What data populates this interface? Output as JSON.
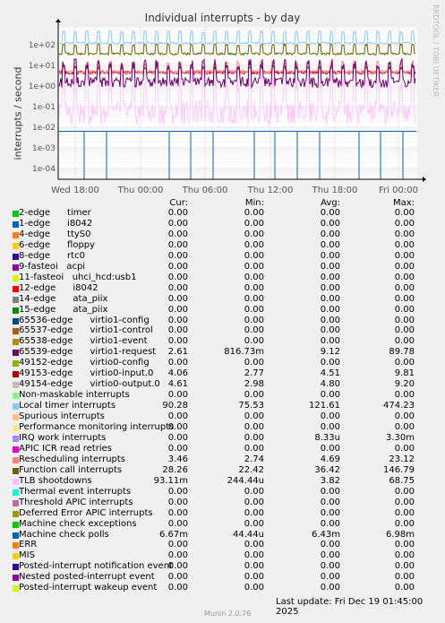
{
  "chart_data": {
    "type": "line",
    "title": "Individual interrupts - by day",
    "ylabel": "interrupts / second",
    "yscale": "log",
    "y_ticks": [
      "1e+02",
      "1e+01",
      "1e+00",
      "1e-01",
      "1e-02",
      "1e-03",
      "1e-04"
    ],
    "x_ticks": [
      "Wed 18:00",
      "Thu 00:00",
      "Thu 06:00",
      "Thu 12:00",
      "Thu 18:00",
      "Fri 00:00"
    ],
    "side_text": "RRDTOOL / TOBI OETIKER",
    "columns": [
      "Cur:",
      "Min:",
      "Avg:",
      "Max:"
    ],
    "series": [
      {
        "name": "2-edge      timer",
        "color": "#00cc00",
        "cur": "0.00",
        "min": "0.00",
        "avg": "0.00",
        "max": "0.00"
      },
      {
        "name": "1-edge      i8042",
        "color": "#0066b3",
        "cur": "0.00",
        "min": "0.00",
        "avg": "0.00",
        "max": "0.00"
      },
      {
        "name": "4-edge      ttyS0",
        "color": "#ff8000",
        "cur": "0.00",
        "min": "0.00",
        "avg": "0.00",
        "max": "0.00"
      },
      {
        "name": "6-edge      floppy",
        "color": "#ffcc00",
        "cur": "0.00",
        "min": "0.00",
        "avg": "0.00",
        "max": "0.00"
      },
      {
        "name": "8-edge      rtc0",
        "color": "#330099",
        "cur": "0.00",
        "min": "0.00",
        "avg": "0.00",
        "max": "0.00"
      },
      {
        "name": "9-fasteoi   acpi",
        "color": "#990099",
        "cur": "0.00",
        "min": "0.00",
        "avg": "0.00",
        "max": "0.00"
      },
      {
        "name": "11-fasteoi   uhci_hcd:usb1",
        "color": "#ccff00",
        "cur": "0.00",
        "min": "0.00",
        "avg": "0.00",
        "max": "0.00"
      },
      {
        "name": "12-edge      i8042",
        "color": "#ff0000",
        "cur": "0.00",
        "min": "0.00",
        "avg": "0.00",
        "max": "0.00"
      },
      {
        "name": "14-edge      ata_piix",
        "color": "#808080",
        "cur": "0.00",
        "min": "0.00",
        "avg": "0.00",
        "max": "0.00"
      },
      {
        "name": "15-edge      ata_piix",
        "color": "#008f00",
        "cur": "0.00",
        "min": "0.00",
        "avg": "0.00",
        "max": "0.00"
      },
      {
        "name": "65536-edge      virtio1-config",
        "color": "#00487d",
        "cur": "0.00",
        "min": "0.00",
        "avg": "0.00",
        "max": "0.00"
      },
      {
        "name": "65537-edge      virtio1-control",
        "color": "#b35a00",
        "cur": "0.00",
        "min": "0.00",
        "avg": "0.00",
        "max": "0.00"
      },
      {
        "name": "65538-edge      virtio1-event",
        "color": "#b38f00",
        "cur": "0.00",
        "min": "0.00",
        "avg": "0.00",
        "max": "0.00"
      },
      {
        "name": "65539-edge      virtio1-request",
        "color": "#6b006b",
        "cur": "2.61",
        "min": "816.73m",
        "avg": "9.12",
        "max": "89.78"
      },
      {
        "name": "49152-edge      virtio0-config",
        "color": "#8fb300",
        "cur": "0.00",
        "min": "0.00",
        "avg": "0.00",
        "max": "0.00"
      },
      {
        "name": "49153-edge      virtio0-input.0",
        "color": "#b30000",
        "cur": "4.06",
        "min": "2.77",
        "avg": "4.51",
        "max": "9.81"
      },
      {
        "name": "49154-edge      virtio0-output.0",
        "color": "#bebebe",
        "cur": "4.61",
        "min": "2.98",
        "avg": "4.80",
        "max": "9.20"
      },
      {
        "name": "Non-maskable interrupts",
        "color": "#80ff80",
        "cur": "0.00",
        "min": "0.00",
        "avg": "0.00",
        "max": "0.00"
      },
      {
        "name": "Local timer interrupts",
        "color": "#80c9ff",
        "cur": "90.28",
        "min": "75.53",
        "avg": "121.61",
        "max": "474.23"
      },
      {
        "name": "Spurious interrupts",
        "color": "#ffc080",
        "cur": "0.00",
        "min": "0.00",
        "avg": "0.00",
        "max": "0.00"
      },
      {
        "name": "Performance monitoring interrupts",
        "color": "#ffe680",
        "cur": "0.00",
        "min": "0.00",
        "avg": "0.00",
        "max": "0.00"
      },
      {
        "name": "IRQ work interrupts",
        "color": "#aa80ff",
        "cur": "0.00",
        "min": "0.00",
        "avg": "8.33u",
        "max": "3.30m"
      },
      {
        "name": "APIC ICR read retries",
        "color": "#ee00cc",
        "cur": "0.00",
        "min": "0.00",
        "avg": "0.00",
        "max": "0.00"
      },
      {
        "name": "Rescheduling interrupts",
        "color": "#ff8080",
        "cur": "3.46",
        "min": "2.74",
        "avg": "4.69",
        "max": "23.12"
      },
      {
        "name": "Function call interrupts",
        "color": "#666600",
        "cur": "28.26",
        "min": "22.42",
        "avg": "36.42",
        "max": "146.79"
      },
      {
        "name": "TLB shootdowns",
        "color": "#ffbfff",
        "cur": "93.11m",
        "min": "244.44u",
        "avg": "3.82",
        "max": "68.75"
      },
      {
        "name": "Thermal event interrupts",
        "color": "#00ffcc",
        "cur": "0.00",
        "min": "0.00",
        "avg": "0.00",
        "max": "0.00"
      },
      {
        "name": "Threshold APIC interrupts",
        "color": "#cc6699",
        "cur": "0.00",
        "min": "0.00",
        "avg": "0.00",
        "max": "0.00"
      },
      {
        "name": "Deferred Error APIC interrupts",
        "color": "#999900",
        "cur": "0.00",
        "min": "0.00",
        "avg": "0.00",
        "max": "0.00"
      },
      {
        "name": "Machine check exceptions",
        "color": "#00cc00",
        "cur": "0.00",
        "min": "0.00",
        "avg": "0.00",
        "max": "0.00"
      },
      {
        "name": "Machine check polls",
        "color": "#0066b3",
        "cur": "6.67m",
        "min": "44.44u",
        "avg": "6.43m",
        "max": "6.98m"
      },
      {
        "name": "ERR",
        "color": "#ff8000",
        "cur": "0.00",
        "min": "0.00",
        "avg": "0.00",
        "max": "0.00"
      },
      {
        "name": "MIS",
        "color": "#ffcc00",
        "cur": "0.00",
        "min": "0.00",
        "avg": "0.00",
        "max": "0.00"
      },
      {
        "name": "Posted-interrupt notification event",
        "color": "#330099",
        "cur": "0.00",
        "min": "0.00",
        "avg": "0.00",
        "max": "0.00"
      },
      {
        "name": "Nested posted-interrupt event",
        "color": "#990099",
        "cur": "0.00",
        "min": "0.00",
        "avg": "0.00",
        "max": "0.00"
      },
      {
        "name": "Posted-interrupt wakeup event",
        "color": "#ccff00",
        "cur": "0.00",
        "min": "0.00",
        "avg": "0.00",
        "max": "0.00"
      }
    ],
    "grid": true,
    "legend_position": "bottom"
  },
  "footer": {
    "last_update": "Last update: Fri Dec 19 01:45:00 2025",
    "generator": "Munin 2.0.76"
  }
}
